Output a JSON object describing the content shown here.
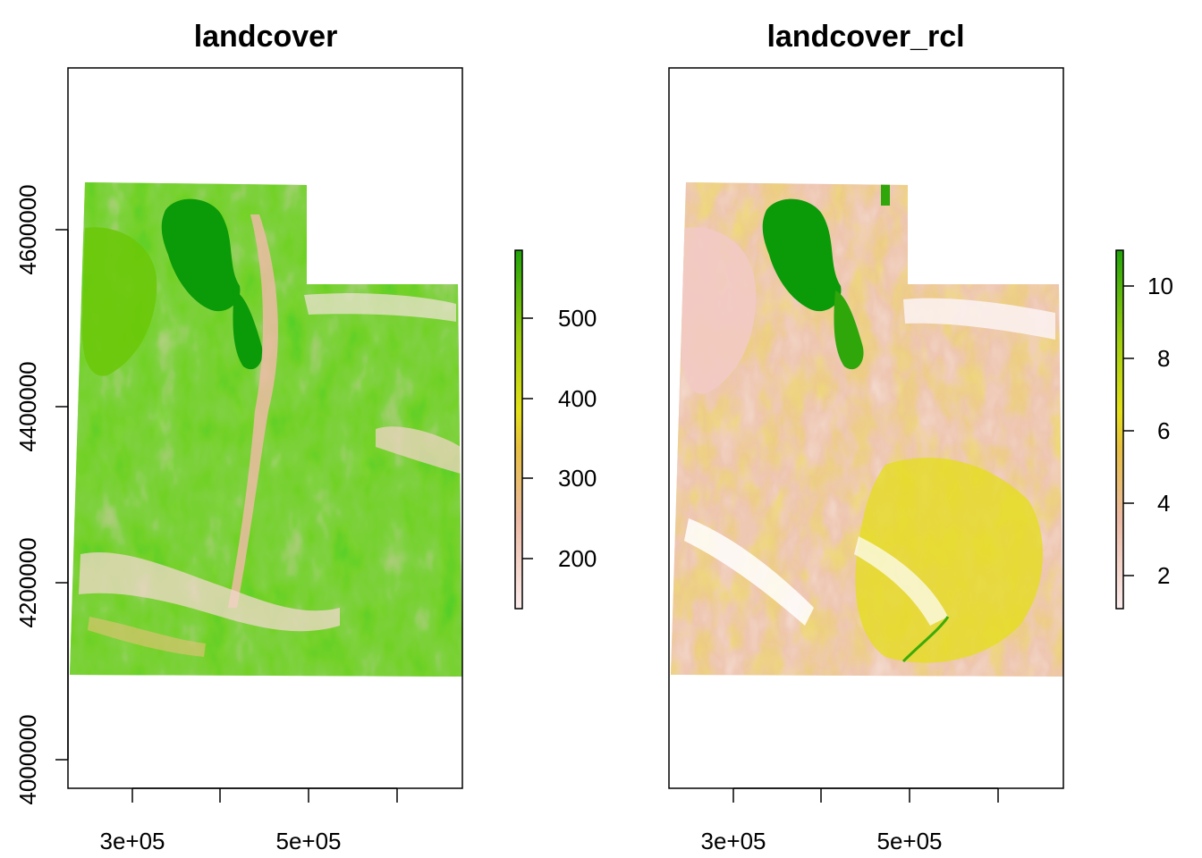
{
  "panels": [
    {
      "title": "landcover",
      "x_ticks": [
        "3e+05",
        "5e+05"
      ],
      "y_ticks": [
        "4000000",
        "4200000",
        "4400000",
        "4600000"
      ],
      "legend": {
        "ticks": [
          "200",
          "300",
          "400",
          "500"
        ],
        "range": [
          140,
          580
        ]
      },
      "palette": [
        "#f4e7e5",
        "#ebb8a2",
        "#e8c432",
        "#c9d80e",
        "#66c40f",
        "#1fa40a"
      ]
    },
    {
      "title": "landcover_rcl",
      "x_ticks": [
        "3e+05",
        "5e+05"
      ],
      "y_ticks": [],
      "legend": {
        "ticks": [
          "2",
          "4",
          "6",
          "8",
          "10"
        ],
        "range": [
          1,
          11
        ]
      },
      "palette": [
        "#fbf1f0",
        "#ebbca8",
        "#e8b070",
        "#e5e119",
        "#a5d10c",
        "#3daa0a"
      ]
    }
  ]
}
